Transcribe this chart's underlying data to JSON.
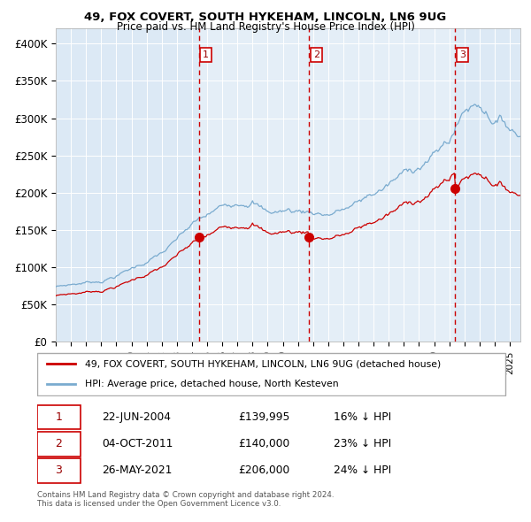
{
  "title1": "49, FOX COVERT, SOUTH HYKEHAM, LINCOLN, LN6 9UG",
  "title2": "Price paid vs. HM Land Registry's House Price Index (HPI)",
  "ylabel_ticks": [
    "£0",
    "£50K",
    "£100K",
    "£150K",
    "£200K",
    "£250K",
    "£300K",
    "£350K",
    "£400K"
  ],
  "ytick_values": [
    0,
    50000,
    100000,
    150000,
    200000,
    250000,
    300000,
    350000,
    400000
  ],
  "ylim": [
    0,
    420000
  ],
  "xlim_start": 1995.0,
  "xlim_end": 2025.7,
  "bg_color": "#dce9f5",
  "red_line_color": "#cc0000",
  "blue_line_color": "#7aabcf",
  "marker_color": "#cc0000",
  "vline_color": "#cc0000",
  "events": [
    {
      "label": "1",
      "date_num": 2004.47,
      "price": 139995
    },
    {
      "label": "2",
      "date_num": 2011.75,
      "price": 140000
    },
    {
      "label": "3",
      "date_num": 2021.4,
      "price": 206000
    }
  ],
  "legend_red": "49, FOX COVERT, SOUTH HYKEHAM, LINCOLN, LN6 9UG (detached house)",
  "legend_blue": "HPI: Average price, detached house, North Kesteven",
  "table_rows": [
    {
      "num": "1",
      "date": "22-JUN-2004",
      "price": "£139,995",
      "pct": "16% ↓ HPI"
    },
    {
      "num": "2",
      "date": "04-OCT-2011",
      "price": "£140,000",
      "pct": "23% ↓ HPI"
    },
    {
      "num": "3",
      "date": "26-MAY-2021",
      "price": "£206,000",
      "pct": "24% ↓ HPI"
    }
  ],
  "footnote1": "Contains HM Land Registry data © Crown copyright and database right 2024.",
  "footnote2": "This data is licensed under the Open Government Licence v3.0."
}
